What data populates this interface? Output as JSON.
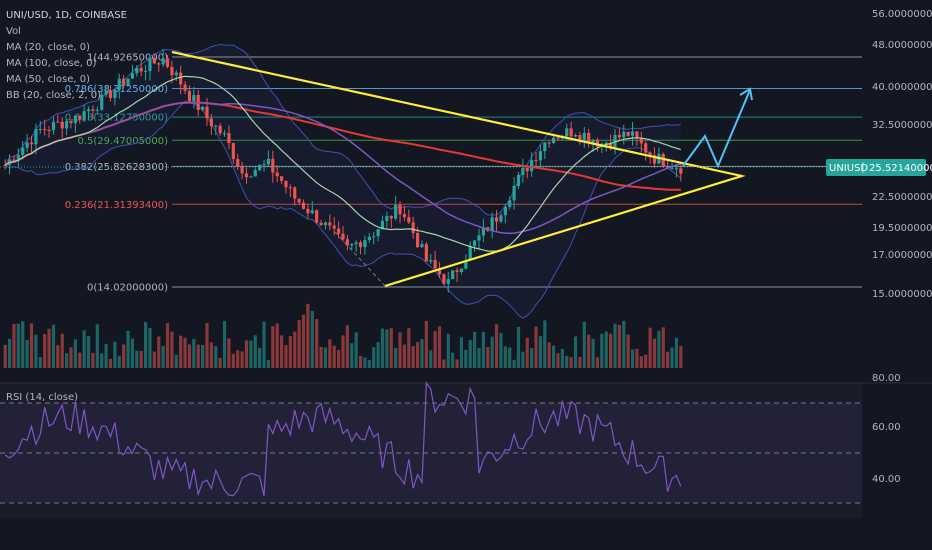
{
  "header": {
    "symbol_line": "UNI/USD, 1D, COINBASE",
    "vol_label": "Vol",
    "ma20_label": "MA (20, close, 0)",
    "ma100_label": "MA (100, close, 0)",
    "ma50_label": "MA (50, close, 0)",
    "bb_label": "BB (20, close, 2, 0)"
  },
  "price_axis": {
    "currency_label": "USD",
    "ticks": [
      "56.00000000",
      "48.00000000",
      "40.00000000",
      "32.50000000",
      "22.50000000",
      "19.50000000",
      "17.00000000",
      "15.00000000"
    ]
  },
  "last_price": {
    "symbol": "UNIUSD",
    "value": "25.52140000"
  },
  "fib": [
    {
      "label": "1(44.92650000)",
      "value": 44.9265,
      "color": "#b2b5be"
    },
    {
      "label": "0.786(38.31250000)",
      "value": 38.3125,
      "color": "#64b5f6"
    },
    {
      "label": "0.618(33.12750000)",
      "value": 33.1275,
      "color": "#26a69a"
    },
    {
      "label": "0.5(29.47005000)",
      "value": 29.47005,
      "color": "#4caf50"
    },
    {
      "label": "0.382(25.82628300)",
      "value": 25.826283,
      "color": "#b2b5be"
    },
    {
      "label": "0.236(21.31393400)",
      "value": 21.313934,
      "color": "#ef5350"
    },
    {
      "label": "0(14.02000000)",
      "value": 14.02,
      "color": "#b2b5be"
    }
  ],
  "rsi_panel": {
    "label": "RSI (14, close)",
    "ticks": [
      "80.00",
      "60.00",
      "40.00"
    ]
  },
  "colors": {
    "background": "#131722",
    "up": "#26a69a",
    "down": "#ef5350",
    "ma20": "#a5d6a7",
    "ma50": "#7e57c2",
    "ma100": "#e53935",
    "bb": "#3f51b5",
    "triangle": "#ffeb3b",
    "projection": "#4fc3f7",
    "rsi": "#7e57c2",
    "last_price_tag": "#26a69a"
  },
  "chart_data": {
    "type": "candlestick",
    "title": "UNI/USD, 1D, COINBASE",
    "ylabel": "USD",
    "y_ticks": [
      56,
      48,
      40,
      32.5,
      22.5,
      19.5,
      17,
      15
    ],
    "last_price": 25.5214,
    "fib_levels": [
      {
        "ratio": 1,
        "price": 44.9265
      },
      {
        "ratio": 0.786,
        "price": 38.3125
      },
      {
        "ratio": 0.618,
        "price": 33.1275
      },
      {
        "ratio": 0.5,
        "price": 29.47005
      },
      {
        "ratio": 0.382,
        "price": 25.826283
      },
      {
        "ratio": 0.236,
        "price": 21.313934
      },
      {
        "ratio": 0,
        "price": 14.02
      }
    ],
    "indicators": [
      "MA (20, close, 0)",
      "MA (100, close, 0)",
      "MA (50, close, 0)",
      "BB (20, close, 2, 0)",
      "RSI (14, close)"
    ],
    "rsi_levels": [
      70,
      50,
      30
    ]
  }
}
